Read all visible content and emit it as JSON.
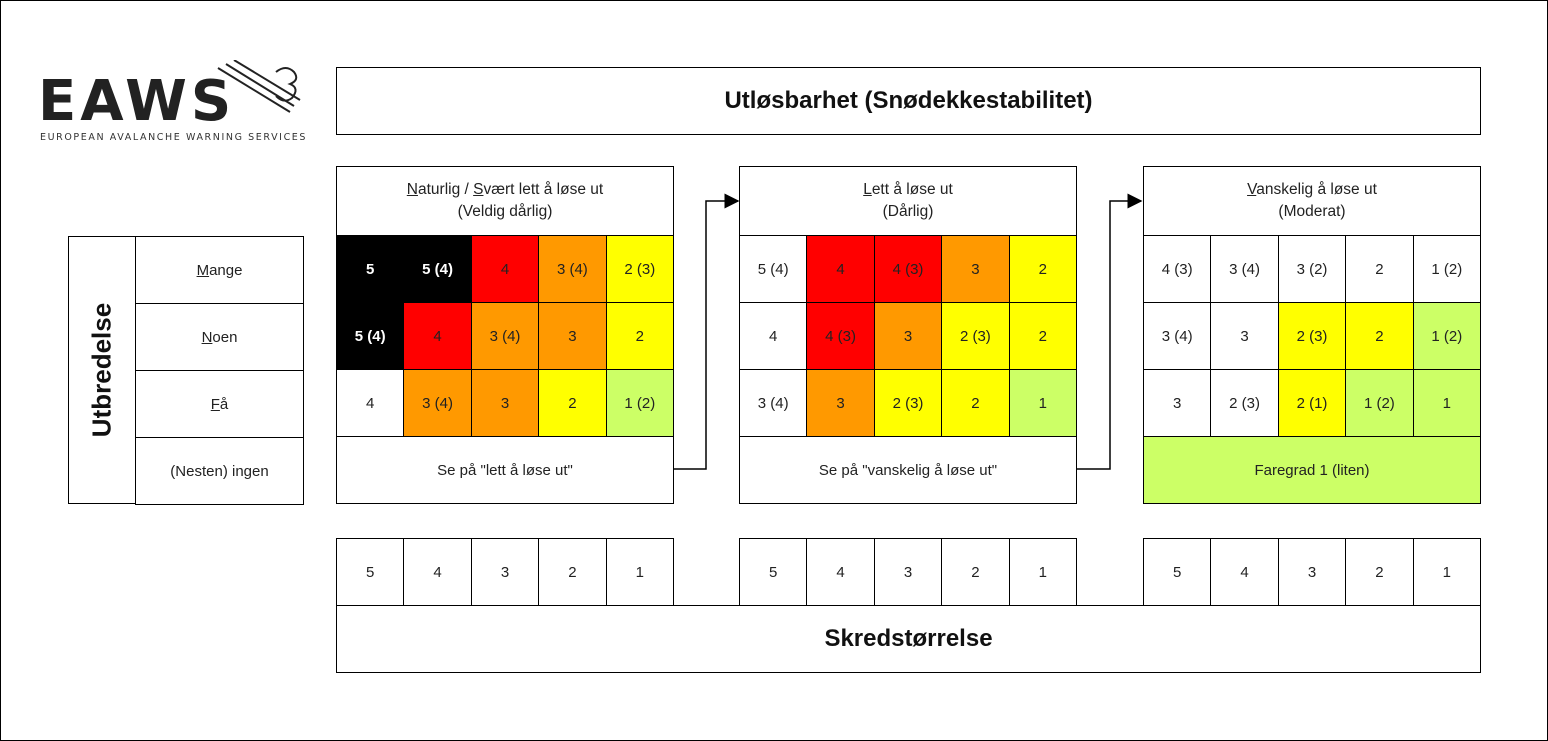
{
  "logo": {
    "name": "EAWS",
    "tagline": "EUROPEAN AVALANCHE WARNING SERVICES"
  },
  "top_title": "Utløsbarhet  (Snødekkestabilitet)",
  "bottom_title": "Skredstørrelse",
  "distribution": {
    "title": "Utbredelse",
    "rows": [
      {
        "first": "M",
        "rest": "ange"
      },
      {
        "first": "N",
        "rest": "oen"
      },
      {
        "first": "F",
        "rest": "å"
      },
      {
        "first": "",
        "rest": "(Nesten) ingen"
      }
    ]
  },
  "panels": [
    {
      "header_line1_parts": [
        {
          "u": "N",
          "t": "aturlig / "
        },
        {
          "u": "S",
          "t": "vært lett å løse ut"
        }
      ],
      "header_line2": "(Veldig dårlig)",
      "rows": [
        [
          {
            "v": "5",
            "c": "k"
          },
          {
            "v": "5 (4)",
            "c": "k"
          },
          {
            "v": "4",
            "c": "r"
          },
          {
            "v": "3 (4)",
            "c": "o"
          },
          {
            "v": "2 (3)",
            "c": "y"
          }
        ],
        [
          {
            "v": "5 (4)",
            "c": "k"
          },
          {
            "v": "4",
            "c": "r"
          },
          {
            "v": "3 (4)",
            "c": "o"
          },
          {
            "v": "3",
            "c": "o"
          },
          {
            "v": "2",
            "c": "y"
          }
        ],
        [
          {
            "v": "4",
            "c": "w"
          },
          {
            "v": "3 (4)",
            "c": "o"
          },
          {
            "v": "3",
            "c": "o"
          },
          {
            "v": "2",
            "c": "y"
          },
          {
            "v": "1 (2)",
            "c": "g"
          }
        ]
      ],
      "footer": {
        "text": "Se på \"lett å løse ut\"",
        "c": "w"
      },
      "sizes": [
        "5",
        "4",
        "3",
        "2",
        "1"
      ]
    },
    {
      "header_line1_parts": [
        {
          "u": "L",
          "t": "ett å løse ut"
        }
      ],
      "header_line2": "(Dårlig)",
      "rows": [
        [
          {
            "v": "5 (4)",
            "c": "w"
          },
          {
            "v": "4",
            "c": "r"
          },
          {
            "v": "4 (3)",
            "c": "r"
          },
          {
            "v": "3",
            "c": "o"
          },
          {
            "v": "2",
            "c": "y"
          }
        ],
        [
          {
            "v": "4",
            "c": "w"
          },
          {
            "v": "4 (3)",
            "c": "r"
          },
          {
            "v": "3",
            "c": "o"
          },
          {
            "v": "2 (3)",
            "c": "y"
          },
          {
            "v": "2",
            "c": "y"
          }
        ],
        [
          {
            "v": "3 (4)",
            "c": "w"
          },
          {
            "v": "3",
            "c": "o"
          },
          {
            "v": "2 (3)",
            "c": "y"
          },
          {
            "v": "2",
            "c": "y"
          },
          {
            "v": "1",
            "c": "g"
          }
        ]
      ],
      "footer": {
        "text": "Se på \"vanskelig å løse ut\"",
        "c": "w"
      },
      "sizes": [
        "5",
        "4",
        "3",
        "2",
        "1"
      ]
    },
    {
      "header_line1_parts": [
        {
          "u": "V",
          "t": "anskelig å løse ut"
        }
      ],
      "header_line2": "(Moderat)",
      "rows": [
        [
          {
            "v": "4 (3)",
            "c": "w"
          },
          {
            "v": "3 (4)",
            "c": "w"
          },
          {
            "v": "3 (2)",
            "c": "w"
          },
          {
            "v": "2",
            "c": "w"
          },
          {
            "v": "1 (2)",
            "c": "w"
          }
        ],
        [
          {
            "v": "3 (4)",
            "c": "w"
          },
          {
            "v": "3",
            "c": "w"
          },
          {
            "v": "2 (3)",
            "c": "y"
          },
          {
            "v": "2",
            "c": "y"
          },
          {
            "v": "1 (2)",
            "c": "g"
          }
        ],
        [
          {
            "v": "3",
            "c": "w"
          },
          {
            "v": "2 (3)",
            "c": "w"
          },
          {
            "v": "2 (1)",
            "c": "y"
          },
          {
            "v": "1 (2)",
            "c": "g"
          },
          {
            "v": "1",
            "c": "g"
          }
        ]
      ],
      "footer": {
        "text": "Faregrad 1 (liten)",
        "c": "g"
      },
      "sizes": [
        "5",
        "4",
        "3",
        "2",
        "1"
      ]
    }
  ],
  "colors": {
    "black": "#000000",
    "red": "#ff0000",
    "orange": "#ff9900",
    "yellow": "#ffff00",
    "light_green": "#ccff66",
    "white": "#ffffff"
  }
}
